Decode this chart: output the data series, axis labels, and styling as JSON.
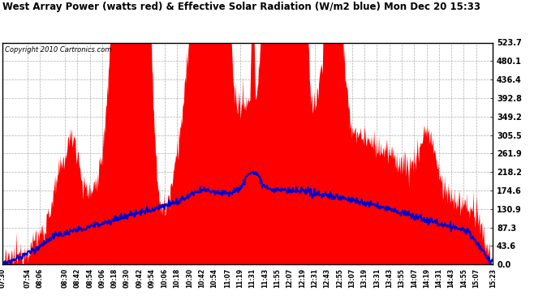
{
  "title": "West Array Power (watts red) & Effective Solar Radiation (W/m2 blue) Mon Dec 20 15:33",
  "copyright": "Copyright 2010 Cartronics.com",
  "background_color": "#ffffff",
  "grid_color": "#999999",
  "red_color": "#ff0000",
  "blue_color": "#0000cc",
  "yticks": [
    0.0,
    43.6,
    87.3,
    130.9,
    174.6,
    218.2,
    261.9,
    305.5,
    349.2,
    392.8,
    436.4,
    480.1,
    523.7
  ],
  "ymax": 523.7,
  "xtick_labels": [
    "07:30",
    "07:54",
    "08:06",
    "08:30",
    "08:42",
    "08:54",
    "09:06",
    "09:18",
    "09:30",
    "09:42",
    "09:54",
    "10:06",
    "10:18",
    "10:30",
    "10:42",
    "10:54",
    "11:07",
    "11:19",
    "11:31",
    "11:43",
    "11:55",
    "12:07",
    "12:19",
    "12:31",
    "12:43",
    "12:55",
    "13:07",
    "13:19",
    "13:31",
    "13:43",
    "13:55",
    "14:07",
    "14:19",
    "14:31",
    "14:43",
    "14:55",
    "15:07",
    "15:23"
  ]
}
